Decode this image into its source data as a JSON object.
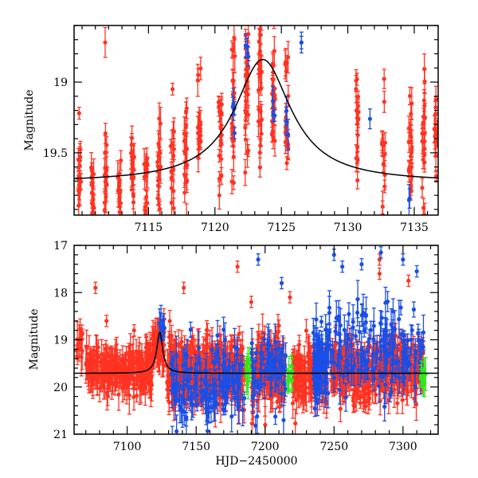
{
  "chart_data": [
    {
      "type": "scatter",
      "panel": "top",
      "title": "",
      "xlabel": "",
      "ylabel": "Magnitude",
      "xlim": [
        7109.4,
        7136.8
      ],
      "ylim": [
        19.94,
        18.6
      ],
      "y_inverted": true,
      "xticks": [
        7115,
        7120,
        7125,
        7130,
        7135
      ],
      "xtick_labels": [
        "7115",
        "7120",
        "7125",
        "7130",
        "7135"
      ],
      "xminor_step": 1,
      "yticks": [
        19,
        19.5
      ],
      "ytick_labels": [
        "19",
        "19.5"
      ],
      "yminor_step": 0.1,
      "grid": false,
      "legend": "none",
      "model": {
        "name": "microlensing model",
        "color": "#000000",
        "baseline_mag": 19.71,
        "peak_time": 7123.6,
        "peak_mag": 18.84,
        "width_days": 2.6
      },
      "series": [
        {
          "name": "red survey",
          "color": "#ff3322",
          "epochs": [
            {
              "t": 7109.8,
              "mag": 19.7,
              "spread": 0.14,
              "n": 14
            },
            {
              "t": 7109.8,
              "mag": 19.22,
              "spread": 0.0,
              "n": 1
            },
            {
              "t": 7110.8,
              "mag": 19.78,
              "spread": 0.11,
              "n": 14
            },
            {
              "t": 7111.8,
              "mag": 19.7,
              "spread": 0.14,
              "n": 16
            },
            {
              "t": 7111.8,
              "mag": 18.72,
              "spread": 0.0,
              "n": 1
            },
            {
              "t": 7112.8,
              "mag": 19.78,
              "spread": 0.1,
              "n": 14
            },
            {
              "t": 7113.8,
              "mag": 19.66,
              "spread": 0.15,
              "n": 16
            },
            {
              "t": 7114.8,
              "mag": 19.66,
              "spread": 0.16,
              "n": 16
            },
            {
              "t": 7115.8,
              "mag": 19.67,
              "spread": 0.17,
              "n": 16
            },
            {
              "t": 7116.8,
              "mag": 19.62,
              "spread": 0.16,
              "n": 16
            },
            {
              "t": 7116.8,
              "mag": 19.05,
              "spread": 0.0,
              "n": 1
            },
            {
              "t": 7117.8,
              "mag": 19.55,
              "spread": 0.2,
              "n": 16
            },
            {
              "t": 7118.8,
              "mag": 19.4,
              "spread": 0.09,
              "n": 14
            },
            {
              "t": 7118.8,
              "mag": 18.95,
              "spread": 0.05,
              "n": 3
            },
            {
              "t": 7120.4,
              "mag": 19.35,
              "spread": 0.17,
              "n": 18
            },
            {
              "t": 7121.4,
              "mag": 19.2,
              "spread": 0.25,
              "n": 22
            },
            {
              "t": 7122.4,
              "mag": 19.05,
              "spread": 0.3,
              "n": 26
            },
            {
              "t": 7123.4,
              "mag": 19.0,
              "spread": 0.3,
              "n": 26
            },
            {
              "t": 7124.4,
              "mag": 19.05,
              "spread": 0.25,
              "n": 22
            },
            {
              "t": 7125.4,
              "mag": 19.2,
              "spread": 0.18,
              "n": 18
            },
            {
              "t": 7130.7,
              "mag": 19.3,
              "spread": 0.19,
              "n": 16
            },
            {
              "t": 7132.7,
              "mag": 19.35,
              "spread": 0.22,
              "n": 14
            },
            {
              "t": 7134.7,
              "mag": 19.5,
              "spread": 0.22,
              "n": 20
            },
            {
              "t": 7135.7,
              "mag": 19.4,
              "spread": 0.3,
              "n": 20
            },
            {
              "t": 7136.6,
              "mag": 19.4,
              "spread": 0.18,
              "n": 10
            }
          ]
        },
        {
          "name": "blue survey",
          "color": "#1a4fe6",
          "epochs": [
            {
              "t": 7121.4,
              "mag": 19.25,
              "spread": 0.08,
              "n": 4
            },
            {
              "t": 7122.4,
              "mag": 18.75,
              "spread": 0.05,
              "n": 3
            },
            {
              "t": 7124.4,
              "mag": 19.12,
              "spread": 0.1,
              "n": 4
            },
            {
              "t": 7125.4,
              "mag": 19.25,
              "spread": 0.08,
              "n": 3
            },
            {
              "t": 7126.6,
              "mag": 18.72,
              "spread": 0.03,
              "n": 2
            },
            {
              "t": 7131.7,
              "mag": 19.26,
              "spread": 0.0,
              "n": 1
            },
            {
              "t": 7134.7,
              "mag": 19.82,
              "spread": 0.02,
              "n": 2
            }
          ]
        }
      ]
    },
    {
      "type": "scatter",
      "panel": "bottom",
      "title": "",
      "xlabel": "HJD−2450000",
      "ylabel": "Magnitude",
      "xlim": [
        7061.5,
        7325.5
      ],
      "ylim": [
        21,
        17
      ],
      "y_inverted": true,
      "xticks": [
        7100,
        7150,
        7200,
        7250,
        7300
      ],
      "xtick_labels": [
        "7100",
        "7150",
        "7200",
        "7250",
        "7300"
      ],
      "xminor_step": 10,
      "yticks": [
        17,
        18,
        19,
        20,
        21
      ],
      "ytick_labels": [
        "17",
        "18",
        "19",
        "20",
        "21"
      ],
      "yminor_step": 0.2,
      "grid": false,
      "legend": "none",
      "model": {
        "name": "microlensing model",
        "color": "#000000",
        "baseline_mag": 19.71,
        "peak_time": 7123.6,
        "peak_mag": 18.84,
        "width_days": 2.6
      },
      "series": [
        {
          "name": "red survey",
          "color": "#ff3322",
          "segments": [
            {
              "t0": 7063,
              "t1": 7068,
              "mag": 19.1,
              "spread": 0.35,
              "n": 14
            },
            {
              "t0": 7070,
              "t1": 7100,
              "mag": 19.6,
              "spread": 0.35,
              "n": 150
            },
            {
              "t0": 7100,
              "t1": 7118,
              "mag": 19.65,
              "spread": 0.45,
              "n": 110
            },
            {
              "t0": 7118,
              "t1": 7127,
              "mag": 19.15,
              "spread": 0.35,
              "n": 60
            },
            {
              "t0": 7129,
              "t1": 7185,
              "mag": 19.7,
              "spread": 0.55,
              "n": 420
            },
            {
              "t0": 7190,
              "t1": 7215,
              "mag": 19.7,
              "spread": 0.55,
              "n": 170
            },
            {
              "t0": 7220,
              "t1": 7245,
              "mag": 19.75,
              "spread": 0.5,
              "n": 160
            },
            {
              "t0": 7248,
              "t1": 7275,
              "mag": 19.65,
              "spread": 0.5,
              "n": 170
            },
            {
              "t0": 7275,
              "t1": 7315,
              "mag": 19.6,
              "spread": 0.45,
              "n": 220
            }
          ],
          "outliers": [
            {
              "t": 7077,
              "mag": 17.9
            },
            {
              "t": 7085,
              "mag": 18.6
            },
            {
              "t": 7105,
              "mag": 18.8
            },
            {
              "t": 7141,
              "mag": 17.9
            },
            {
              "t": 7180,
              "mag": 17.45
            },
            {
              "t": 7190,
              "mag": 18.2
            },
            {
              "t": 7210,
              "mag": 18.7
            },
            {
              "t": 7218,
              "mag": 18.1
            },
            {
              "t": 7283,
              "mag": 17.3
            },
            {
              "t": 7283,
              "mag": 17.6
            },
            {
              "t": 7304,
              "mag": 17.75
            }
          ]
        },
        {
          "name": "blue survey",
          "color": "#1a4fe6",
          "segments": [
            {
              "t0": 7123,
              "t1": 7127,
              "mag": 18.7,
              "spread": 0.15,
              "n": 8
            },
            {
              "t0": 7131,
              "t1": 7185,
              "mag": 19.9,
              "spread": 0.7,
              "n": 140
            },
            {
              "t0": 7190,
              "t1": 7215,
              "mag": 19.6,
              "spread": 0.7,
              "n": 70
            },
            {
              "t0": 7235,
              "t1": 7245,
              "mag": 19.5,
              "spread": 0.55,
              "n": 90
            },
            {
              "t0": 7245,
              "t1": 7315,
              "mag": 19.3,
              "spread": 0.75,
              "n": 160
            }
          ],
          "outliers": [
            {
              "t": 7195,
              "mag": 17.3
            },
            {
              "t": 7212,
              "mag": 17.8
            },
            {
              "t": 7250,
              "mag": 17.2
            },
            {
              "t": 7256,
              "mag": 17.45
            },
            {
              "t": 7270,
              "mag": 17.4
            },
            {
              "t": 7284,
              "mag": 17.15
            },
            {
              "t": 7300,
              "mag": 17.3
            },
            {
              "t": 7310,
              "mag": 17.55
            }
          ]
        },
        {
          "name": "green survey",
          "color": "#33e61a",
          "segments": [
            {
              "t0": 7186,
              "t1": 7189,
              "mag": 19.65,
              "spread": 0.2,
              "n": 12
            },
            {
              "t0": 7216,
              "t1": 7220,
              "mag": 19.75,
              "spread": 0.15,
              "n": 8
            },
            {
              "t0": 7313,
              "t1": 7317,
              "mag": 19.75,
              "spread": 0.12,
              "n": 10
            }
          ],
          "outliers": []
        }
      ]
    }
  ]
}
